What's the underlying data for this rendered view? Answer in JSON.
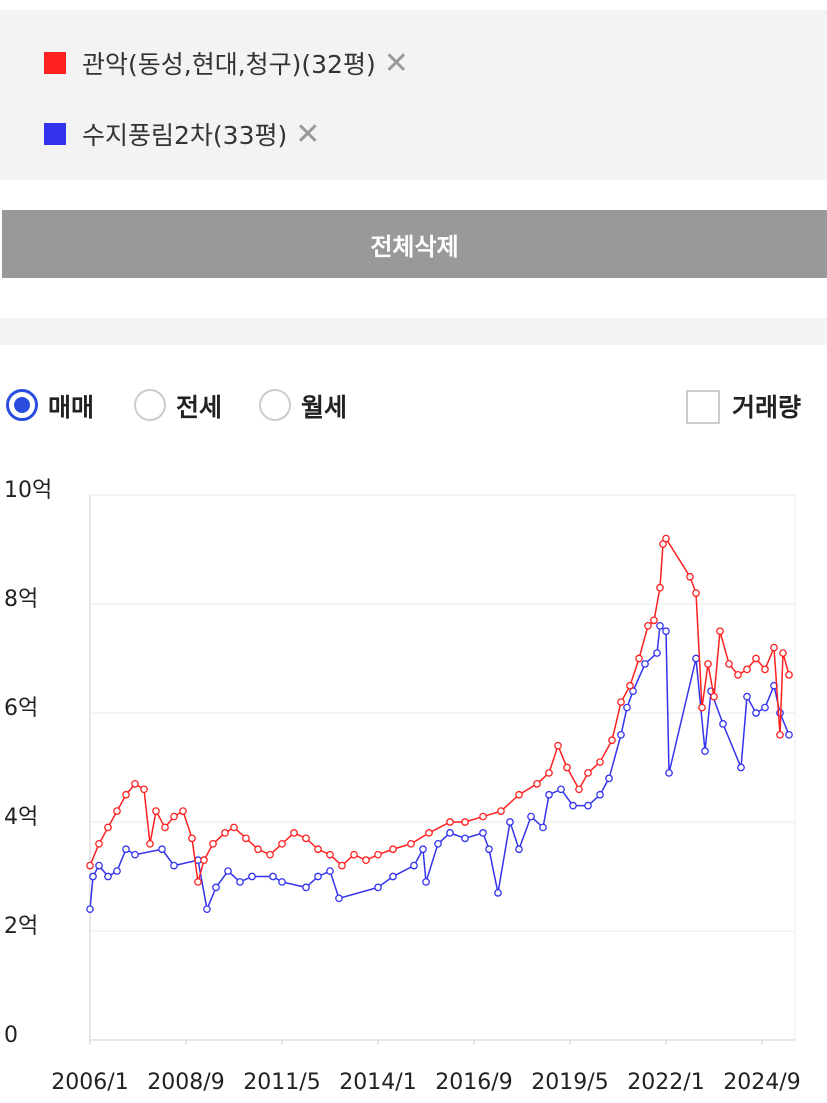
{
  "panel": {
    "clear_all": "전체삭제"
  },
  "trade_types": {
    "options": [
      "매매",
      "전세",
      "월세"
    ],
    "selected_index": 0
  },
  "volume_toggle": {
    "label": "거래량",
    "checked": false
  },
  "chart_data": {
    "type": "line",
    "grid": true,
    "xlim": [
      "2006/1",
      "2025/8"
    ],
    "xticks": [
      "2006/1",
      "2008/9",
      "2011/5",
      "2014/1",
      "2016/9",
      "2019/5",
      "2022/1",
      "2024/9"
    ],
    "ylim": [
      0,
      10
    ],
    "yticks": [
      0,
      {
        "value": 2,
        "label": "2억"
      },
      {
        "value": 4,
        "label": "4억"
      },
      {
        "value": 6,
        "label": "6억"
      },
      {
        "value": 8,
        "label": "8억"
      },
      {
        "value": 10,
        "label": "10억"
      }
    ],
    "series": [
      {
        "name": "관악(동성,현대,청구)(32평)",
        "color": "#ff2020",
        "x": [
          "2006/1",
          "2006/4",
          "2006/7",
          "2006/10",
          "2007/1",
          "2007/4",
          "2007/7",
          "2007/9",
          "2007/11",
          "2008/2",
          "2008/5",
          "2008/8",
          "2008/11",
          "2009/1",
          "2009/3",
          "2009/6",
          "2009/10",
          "2010/1",
          "2010/5",
          "2010/9",
          "2011/1",
          "2011/5",
          "2011/9",
          "2012/1",
          "2012/5",
          "2012/9",
          "2013/1",
          "2013/5",
          "2013/9",
          "2014/1",
          "2014/6",
          "2014/12",
          "2015/6",
          "2016/1",
          "2016/6",
          "2016/12",
          "2017/6",
          "2017/12",
          "2018/6",
          "2018/10",
          "2019/1",
          "2019/4",
          "2019/8",
          "2019/11",
          "2020/3",
          "2020/7",
          "2020/10",
          "2021/1",
          "2021/4",
          "2021/7",
          "2021/9",
          "2021/11",
          "2021/12",
          "2022/1",
          "2022/9",
          "2022/11",
          "2023/1",
          "2023/3",
          "2023/5",
          "2023/7",
          "2023/10",
          "2024/1",
          "2024/4",
          "2024/7",
          "2024/10",
          "2025/1",
          "2025/3",
          "2025/4",
          "2025/6"
        ],
        "values": [
          3.2,
          3.6,
          3.9,
          4.2,
          4.5,
          4.7,
          4.6,
          3.6,
          4.2,
          3.9,
          4.1,
          4.2,
          3.7,
          2.9,
          3.3,
          3.6,
          3.8,
          3.9,
          3.7,
          3.5,
          3.4,
          3.6,
          3.8,
          3.7,
          3.5,
          3.4,
          3.2,
          3.4,
          3.3,
          3.4,
          3.5,
          3.6,
          3.8,
          4.0,
          4.0,
          4.1,
          4.2,
          4.5,
          4.7,
          4.9,
          5.4,
          5.0,
          4.6,
          4.9,
          5.1,
          5.5,
          6.2,
          6.5,
          7.0,
          7.6,
          7.7,
          8.3,
          9.1,
          9.2,
          8.5,
          8.2,
          6.1,
          6.9,
          6.3,
          7.5,
          6.9,
          6.7,
          6.8,
          7.0,
          6.8,
          7.2,
          5.6,
          7.1,
          6.7
        ]
      },
      {
        "name": "수지풍림2차(33평)",
        "color": "#3333ee",
        "x": [
          "2006/1",
          "2006/2",
          "2006/4",
          "2006/7",
          "2006/10",
          "2007/1",
          "2007/4",
          "2008/1",
          "2008/5",
          "2009/1",
          "2009/4",
          "2009/7",
          "2009/11",
          "2010/3",
          "2010/7",
          "2011/2",
          "2011/5",
          "2012/1",
          "2012/5",
          "2012/9",
          "2012/12",
          "2014/1",
          "2014/6",
          "2015/1",
          "2015/4",
          "2015/5",
          "2015/9",
          "2016/1",
          "2016/6",
          "2016/12",
          "2017/2",
          "2017/5",
          "2017/9",
          "2017/12",
          "2018/4",
          "2018/8",
          "2018/10",
          "2019/2",
          "2019/6",
          "2019/11",
          "2020/3",
          "2020/6",
          "2020/10",
          "2020/12",
          "2021/2",
          "2021/6",
          "2021/10",
          "2021/11",
          "2022/1",
          "2022/2",
          "2022/11",
          "2023/2",
          "2023/4",
          "2023/8",
          "2024/2",
          "2024/4",
          "2024/7",
          "2024/10",
          "2025/1",
          "2025/3",
          "2025/6"
        ],
        "values": [
          2.4,
          3.0,
          3.2,
          3.0,
          3.1,
          3.5,
          3.4,
          3.5,
          3.2,
          3.3,
          2.4,
          2.8,
          3.1,
          2.9,
          3.0,
          3.0,
          2.9,
          2.8,
          3.0,
          3.1,
          2.6,
          2.8,
          3.0,
          3.2,
          3.5,
          2.9,
          3.6,
          3.8,
          3.7,
          3.8,
          3.5,
          2.7,
          4.0,
          3.5,
          4.1,
          3.9,
          4.5,
          4.6,
          4.3,
          4.3,
          4.5,
          4.8,
          5.6,
          6.1,
          6.4,
          6.9,
          7.1,
          7.6,
          7.5,
          4.9,
          7.0,
          5.3,
          6.4,
          5.8,
          5.0,
          6.3,
          6.0,
          6.1,
          6.5,
          6.0,
          5.6
        ]
      }
    ]
  }
}
